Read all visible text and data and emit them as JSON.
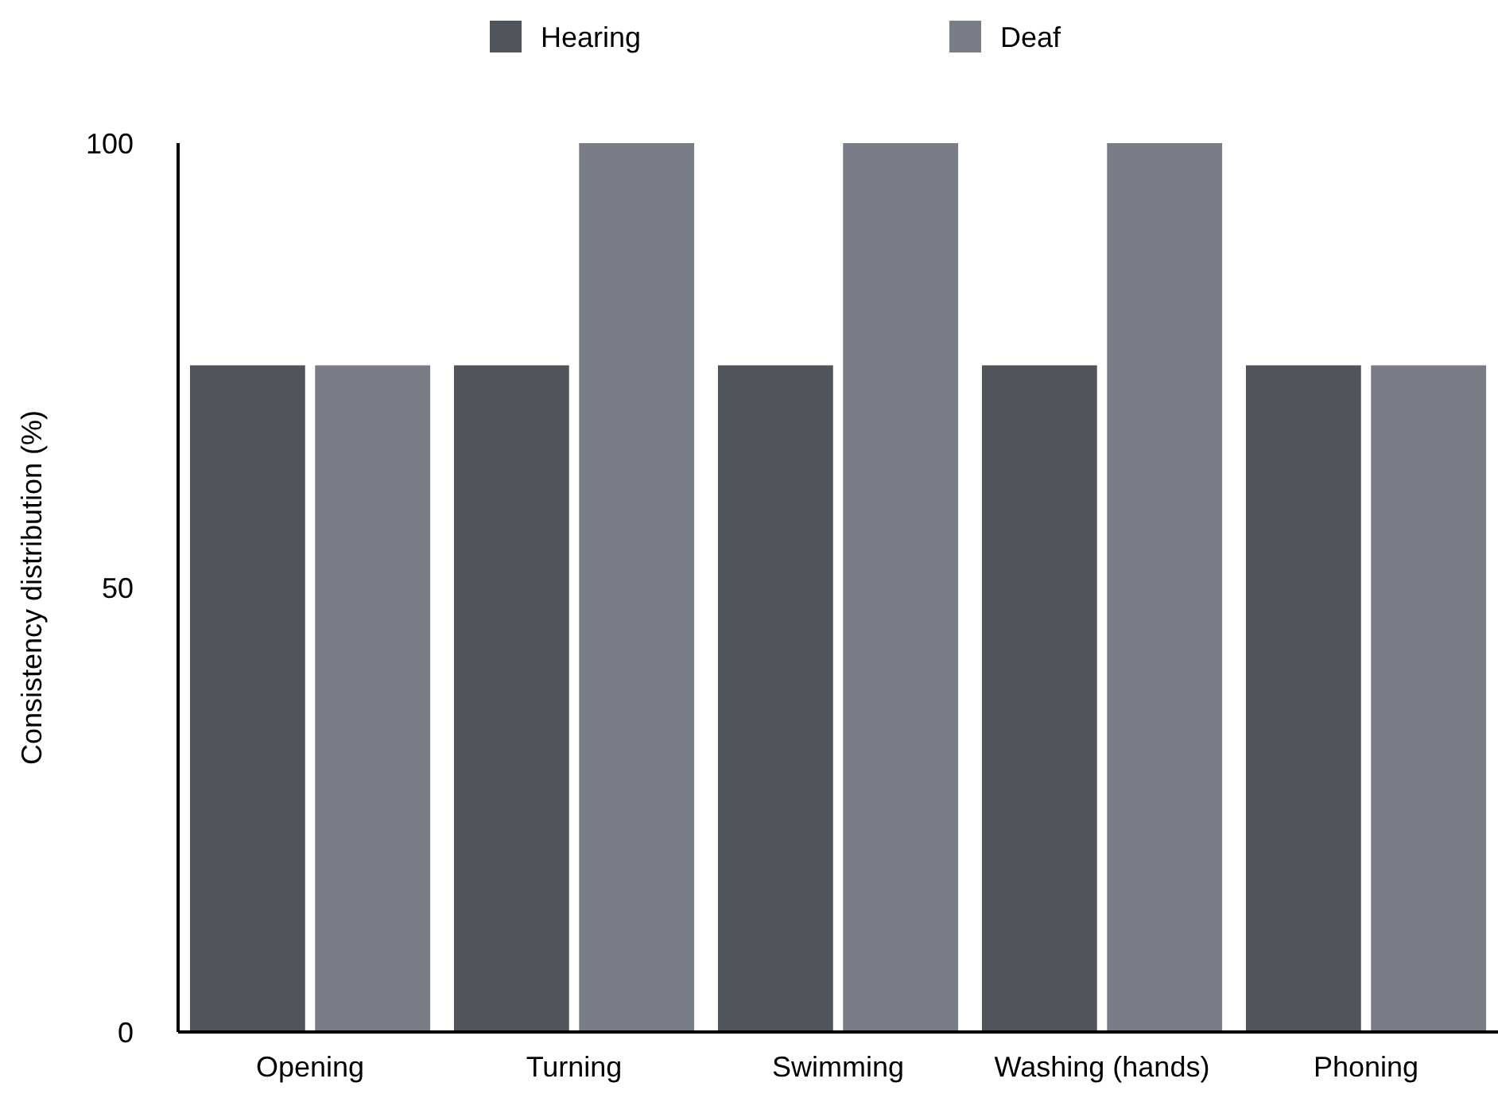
{
  "chart_data": {
    "type": "bar",
    "ylabel": "Consistency distribution (%)",
    "categories": [
      "Opening",
      "Turning",
      "Swimming",
      "Washing (hands)",
      "Phoning"
    ],
    "series": [
      {
        "name": "Hearing",
        "color": "#50545b",
        "values": [
          75,
          75,
          75,
          75,
          75
        ]
      },
      {
        "name": "Deaf",
        "color": "#787d87",
        "values": [
          75,
          100,
          100,
          100,
          75
        ]
      }
    ],
    "ylim": [
      0,
      100
    ],
    "yticks": [
      0,
      50,
      100
    ],
    "grid": false,
    "legend": "top"
  }
}
